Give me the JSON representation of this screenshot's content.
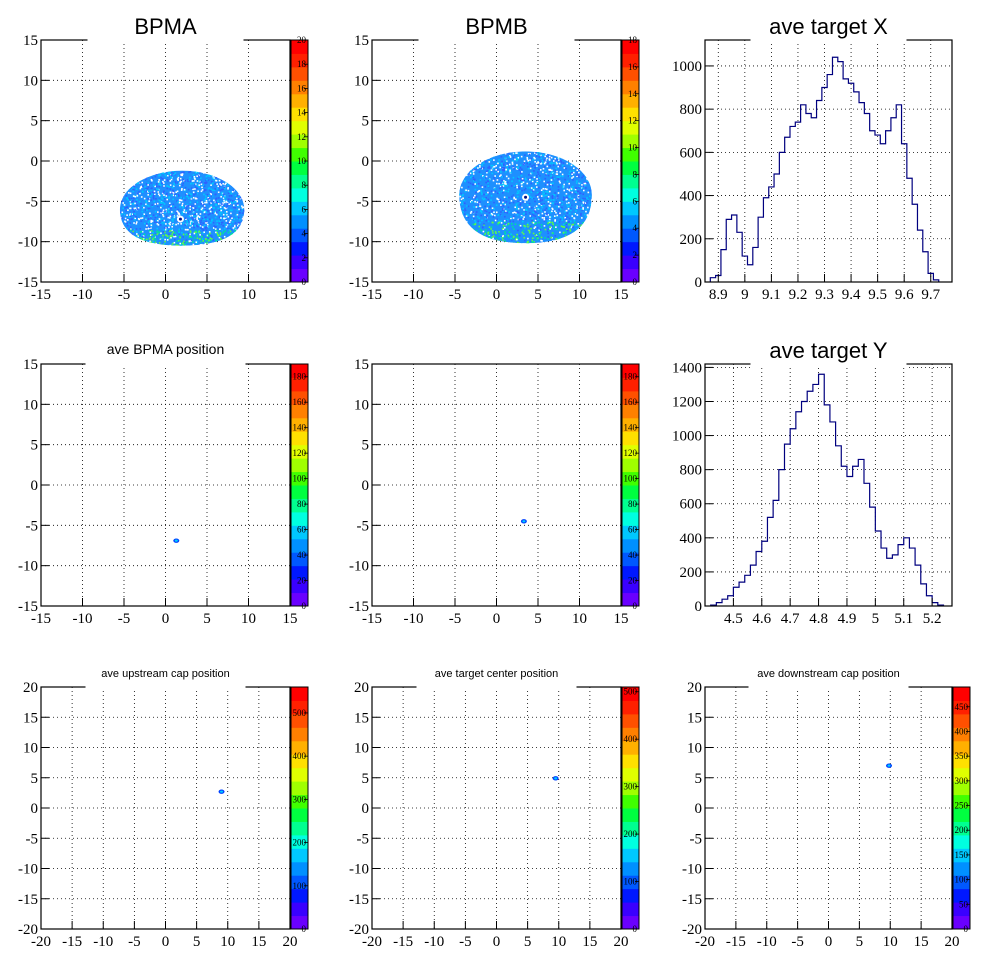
{
  "chart_data": [
    {
      "type": "heatmap",
      "title": "BPMA",
      "xlim": [
        -15,
        15
      ],
      "ylim": [
        -15,
        15
      ],
      "x_ticks": [
        -15,
        -10,
        -5,
        0,
        5,
        10,
        15
      ],
      "y_ticks": [
        -15,
        -10,
        -5,
        0,
        5,
        10,
        15
      ],
      "z_range": [
        0,
        20
      ],
      "z_ticks": [
        0,
        2,
        4,
        6,
        8,
        10,
        12,
        14,
        16,
        18,
        20
      ],
      "grid": true,
      "blob": {
        "center": [
          2,
          -6
        ],
        "radius": [
          7.5,
          4.8
        ],
        "bottom_y": -10.5,
        "hole": [
          1.8,
          -7.2
        ],
        "fill": "#1e90ff"
      }
    },
    {
      "type": "heatmap",
      "title": "BPMB",
      "xlim": [
        -15,
        15
      ],
      "ylim": [
        -15,
        15
      ],
      "x_ticks": [
        -15,
        -10,
        -5,
        0,
        5,
        10,
        15
      ],
      "y_ticks": [
        -15,
        -10,
        -5,
        0,
        5,
        10,
        15
      ],
      "z_range": [
        0,
        18
      ],
      "z_ticks": [
        0,
        2,
        4,
        6,
        8,
        10,
        12,
        14,
        16,
        18
      ],
      "grid": true,
      "blob": {
        "center": [
          3.5,
          -4.2
        ],
        "radius": [
          8,
          5.4
        ],
        "bottom_y": -10.2,
        "hole": [
          3.5,
          -4.5
        ],
        "fill": "#1e90ff"
      }
    },
    {
      "type": "histogram",
      "title": "ave target X",
      "xlim": [
        8.85,
        9.78
      ],
      "ylim": [
        0,
        1120
      ],
      "x_ticks": [
        8.9,
        9,
        9.1,
        9.2,
        9.3,
        9.4,
        9.5,
        9.6,
        9.7
      ],
      "y_ticks": [
        0,
        200,
        400,
        600,
        800,
        1000
      ],
      "x": [
        8.88,
        8.9,
        8.92,
        8.94,
        8.96,
        8.98,
        9.0,
        9.02,
        9.04,
        9.06,
        9.08,
        9.1,
        9.12,
        9.14,
        9.16,
        9.18,
        9.2,
        9.22,
        9.24,
        9.26,
        9.28,
        9.3,
        9.32,
        9.34,
        9.36,
        9.38,
        9.4,
        9.42,
        9.44,
        9.46,
        9.48,
        9.5,
        9.52,
        9.54,
        9.56,
        9.58,
        9.6,
        9.62,
        9.64,
        9.66,
        9.68,
        9.7,
        9.72
      ],
      "values": [
        20,
        30,
        150,
        290,
        310,
        230,
        120,
        80,
        160,
        300,
        390,
        440,
        500,
        600,
        670,
        720,
        740,
        820,
        780,
        760,
        840,
        900,
        960,
        1040,
        1020,
        940,
        920,
        880,
        830,
        780,
        700,
        680,
        640,
        700,
        760,
        820,
        640,
        480,
        360,
        240,
        140,
        40,
        10
      ],
      "grid": true
    },
    {
      "type": "heatmap",
      "title": "ave BPMA position",
      "xlim": [
        -15,
        15
      ],
      "ylim": [
        -15,
        15
      ],
      "x_ticks": [
        -15,
        -10,
        -5,
        0,
        5,
        10,
        15
      ],
      "y_ticks": [
        -15,
        -10,
        -5,
        0,
        5,
        10,
        15
      ],
      "z_range": [
        0,
        190
      ],
      "z_ticks": [
        0,
        20,
        40,
        60,
        80,
        100,
        120,
        140,
        160,
        180
      ],
      "grid": true,
      "spot": [
        1.3,
        -6.9
      ]
    },
    {
      "type": "heatmap",
      "title": "",
      "xlim": [
        -15,
        15
      ],
      "ylim": [
        -15,
        15
      ],
      "x_ticks": [
        -15,
        -10,
        -5,
        0,
        5,
        10,
        15
      ],
      "y_ticks": [
        -15,
        -10,
        -5,
        0,
        5,
        10,
        15
      ],
      "z_range": [
        0,
        190
      ],
      "z_ticks": [
        0,
        20,
        40,
        60,
        80,
        100,
        120,
        140,
        160,
        180
      ],
      "grid": true,
      "spot": [
        3.3,
        -4.5
      ]
    },
    {
      "type": "histogram",
      "title": "ave target Y",
      "xlim": [
        4.4,
        5.27
      ],
      "ylim": [
        0,
        1420
      ],
      "x_ticks": [
        4.5,
        4.6,
        4.7,
        4.8,
        4.9,
        5,
        5.1,
        5.2
      ],
      "y_ticks": [
        0,
        200,
        400,
        600,
        800,
        1000,
        1200,
        1400
      ],
      "x": [
        4.43,
        4.45,
        4.47,
        4.49,
        4.51,
        4.53,
        4.55,
        4.57,
        4.59,
        4.61,
        4.63,
        4.65,
        4.67,
        4.69,
        4.71,
        4.73,
        4.75,
        4.77,
        4.79,
        4.81,
        4.83,
        4.85,
        4.87,
        4.89,
        4.91,
        4.93,
        4.95,
        4.97,
        4.99,
        5.01,
        5.03,
        5.05,
        5.07,
        5.09,
        5.11,
        5.13,
        5.15,
        5.17,
        5.19,
        5.21,
        5.23
      ],
      "values": [
        5,
        20,
        40,
        60,
        110,
        140,
        180,
        240,
        320,
        380,
        520,
        620,
        800,
        950,
        1040,
        1140,
        1200,
        1260,
        1300,
        1360,
        1180,
        1080,
        940,
        820,
        760,
        820,
        860,
        720,
        580,
        440,
        340,
        280,
        300,
        360,
        400,
        340,
        240,
        130,
        60,
        20,
        5
      ],
      "grid": true
    },
    {
      "type": "heatmap",
      "title": "ave upstream cap position",
      "xlim": [
        -20,
        20
      ],
      "ylim": [
        -20,
        20
      ],
      "x_ticks": [
        -20,
        -15,
        -10,
        -5,
        0,
        5,
        10,
        15,
        20
      ],
      "y_ticks": [
        -20,
        -15,
        -10,
        -5,
        0,
        5,
        10,
        15,
        20
      ],
      "z_range": [
        0,
        560
      ],
      "z_ticks": [
        0,
        100,
        200,
        300,
        400,
        500
      ],
      "grid": true,
      "spot": [
        9.0,
        2.7
      ]
    },
    {
      "type": "heatmap",
      "title": "ave target center  position",
      "xlim": [
        -20,
        20
      ],
      "ylim": [
        -20,
        20
      ],
      "x_ticks": [
        -20,
        -15,
        -10,
        -5,
        0,
        5,
        10,
        15,
        20
      ],
      "y_ticks": [
        -20,
        -15,
        -10,
        -5,
        0,
        5,
        10,
        15,
        20
      ],
      "z_range": [
        0,
        510
      ],
      "z_ticks": [
        0,
        100,
        200,
        300,
        400,
        500
      ],
      "grid": true,
      "spot": [
        9.5,
        4.9
      ]
    },
    {
      "type": "heatmap",
      "title": "ave downstream cap position",
      "xlim": [
        -20,
        20
      ],
      "ylim": [
        -20,
        20
      ],
      "x_ticks": [
        -20,
        -15,
        -10,
        -5,
        0,
        5,
        10,
        15,
        20
      ],
      "y_ticks": [
        -20,
        -15,
        -10,
        -5,
        0,
        5,
        10,
        15,
        20
      ],
      "z_range": [
        0,
        490
      ],
      "z_ticks": [
        0,
        50,
        100,
        150,
        200,
        250,
        300,
        350,
        400,
        450
      ],
      "grid": true,
      "spot": [
        9.8,
        7.0
      ]
    }
  ],
  "colors": {
    "palette": [
      "#6a00ff",
      "#3a00ff",
      "#0018ff",
      "#0058ff",
      "#0090ff",
      "#00c8ff",
      "#00ffe0",
      "#00ff90",
      "#00ff40",
      "#40ff00",
      "#a0ff00",
      "#e0ff00",
      "#ffe000",
      "#ffb000",
      "#ff8000",
      "#ff5000",
      "#ff2000",
      "#ff0000"
    ],
    "histogram_line": "#00007f",
    "grid": "#000000"
  }
}
